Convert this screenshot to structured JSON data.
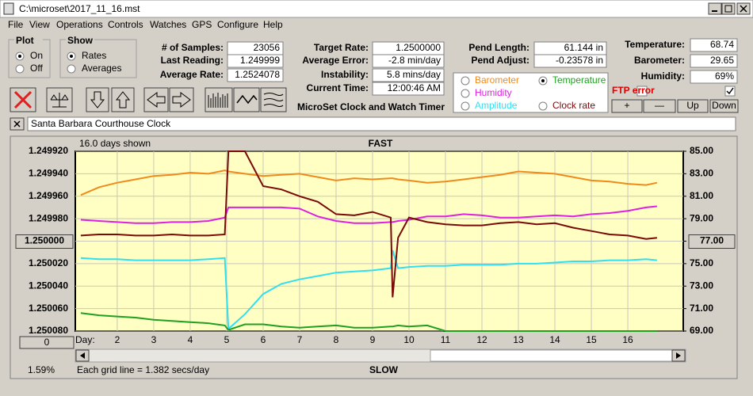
{
  "window": {
    "title": "C:\\microset\\2017_11_16.mst",
    "menu": [
      "File",
      "View",
      "Operations",
      "Controls",
      "Watches",
      "GPS",
      "Configure",
      "Help"
    ]
  },
  "controls": {
    "plot": {
      "label": "Plot",
      "options": [
        "On",
        "Off"
      ]
    },
    "show": {
      "label": "Show",
      "options": [
        "Rates",
        "Averages"
      ]
    },
    "fields": [
      {
        "label": "# of Samples:",
        "value": "23056"
      },
      {
        "label": "Last Reading:",
        "value": "1.249999"
      },
      {
        "label": "Average Rate:",
        "value": "1.2524078"
      },
      {
        "label": "Target Rate:",
        "value": "1.2500000"
      },
      {
        "label": "Average Error:",
        "value": "-2.8 min/day"
      },
      {
        "label": "Instability:",
        "value": "5.8 mins/day"
      },
      {
        "label": "Current Time:",
        "value": "12:00:46 AM"
      },
      {
        "label": "Pend Length:",
        "value": "61.144 in"
      },
      {
        "label": "Pend Adjust:",
        "value": "-0.23578 in"
      },
      {
        "label": "Temperature:",
        "value": "68.74"
      },
      {
        "label": "Barometer:",
        "value": "29.65"
      },
      {
        "label": "Humidity:",
        "value": "69%"
      }
    ],
    "app_name": "MicroSet Clock and Watch Timer",
    "ftp_error": "FTP error",
    "buttons": [
      "+",
      "—",
      "Up",
      "Down"
    ],
    "clock_name": "Santa Barbara Courthouse Clock",
    "days_shown": "16.0 days shown",
    "top_label": "FAST",
    "bottom_label": "SLOW",
    "x_prefix": "Day:",
    "grid_note": "Each grid line = 1.382 secs/day",
    "corner_value": "1.59%",
    "offset_button": "0"
  },
  "chart_data": {
    "type": "line",
    "x": [
      1,
      1.5,
      2,
      2.5,
      3,
      3.5,
      4,
      4.5,
      4.95,
      5.05,
      5.5,
      6,
      6.5,
      7,
      7.5,
      8,
      8.5,
      9,
      9.5,
      9.55,
      9.7,
      10,
      10.5,
      11,
      11.5,
      12,
      12.5,
      13,
      13.5,
      14,
      14.5,
      15,
      15.5,
      16,
      16.5,
      16.8
    ],
    "xlim": [
      0.85,
      17.52
    ],
    "xticks": [
      2,
      3,
      4,
      5,
      6,
      7,
      8,
      9,
      10,
      11,
      12,
      13,
      14,
      15,
      16
    ],
    "ylim": [
      1.25008,
      1.24992
    ],
    "yticks": [
      {
        "value": 1.24992,
        "label": "1.249920"
      },
      {
        "value": 1.24994,
        "label": "1.249940"
      },
      {
        "value": 1.24996,
        "label": "1.249960"
      },
      {
        "value": 1.24998,
        "label": "1.249980"
      },
      {
        "value": 1.25,
        "label": "1.250000"
      },
      {
        "value": 1.25002,
        "label": "1.250020"
      },
      {
        "value": 1.25004,
        "label": "1.250040"
      },
      {
        "value": 1.25006,
        "label": "1.250060"
      },
      {
        "value": 1.25008,
        "label": "1.250080"
      }
    ],
    "y2lim": [
      69,
      85
    ],
    "y2ticks": [
      {
        "value": 85,
        "label": "85.00"
      },
      {
        "value": 83,
        "label": "83.00"
      },
      {
        "value": 81,
        "label": "81.00"
      },
      {
        "value": 79,
        "label": "79.00"
      },
      {
        "value": 77,
        "label": "77.00"
      },
      {
        "value": 75,
        "label": "75.00"
      },
      {
        "value": 73,
        "label": "73.00"
      },
      {
        "value": 71,
        "label": "71.00"
      },
      {
        "value": 69,
        "label": "69.00"
      }
    ],
    "grid": true,
    "series": [
      {
        "name": "Barometer",
        "color": "#f08a1c",
        "axis": "y2",
        "values": [
          81.1,
          81.8,
          82.2,
          82.5,
          82.8,
          82.9,
          83.1,
          83.0,
          83.3,
          83.2,
          83.0,
          82.8,
          82.9,
          83.0,
          82.7,
          82.4,
          82.6,
          82.5,
          82.6,
          82.6,
          82.5,
          82.4,
          82.2,
          82.3,
          82.5,
          82.7,
          82.9,
          83.2,
          83.1,
          83.0,
          82.7,
          82.4,
          82.3,
          82.1,
          82.0,
          82.2
        ]
      },
      {
        "name": "Humidity",
        "color": "#e020e0",
        "axis": "y2",
        "values": [
          78.9,
          78.8,
          78.7,
          78.6,
          78.6,
          78.7,
          78.7,
          78.8,
          79.1,
          80.0,
          80.0,
          80.0,
          80.0,
          79.9,
          79.2,
          78.8,
          78.6,
          78.6,
          78.7,
          78.7,
          78.8,
          78.9,
          79.2,
          79.2,
          79.4,
          79.3,
          79.1,
          79.1,
          79.2,
          79.3,
          79.2,
          79.4,
          79.5,
          79.7,
          80.0,
          80.1
        ]
      },
      {
        "name": "Amplitude",
        "color": "#30e0f0",
        "axis": "y2",
        "values": [
          75.5,
          75.4,
          75.4,
          75.3,
          75.3,
          75.3,
          75.3,
          75.4,
          75.5,
          69.2,
          70.5,
          72.3,
          73.2,
          73.6,
          73.9,
          74.2,
          74.3,
          74.4,
          74.6,
          76.2,
          74.6,
          74.7,
          74.8,
          74.8,
          74.9,
          74.9,
          74.9,
          75.0,
          75.0,
          75.1,
          75.2,
          75.2,
          75.3,
          75.3,
          75.4,
          75.3
        ]
      },
      {
        "name": "Temperature",
        "color": "#20a020",
        "axis": "y2",
        "values": [
          70.6,
          70.4,
          70.3,
          70.2,
          70.0,
          69.9,
          69.8,
          69.7,
          69.5,
          69.1,
          69.6,
          69.6,
          69.4,
          69.3,
          69.4,
          69.5,
          69.3,
          69.3,
          69.4,
          69.4,
          69.5,
          69.4,
          69.5,
          69.0,
          69.0,
          69.0,
          69.0,
          69.0,
          69.0,
          69.0,
          69.0,
          69.0,
          69.0,
          69.0,
          69.0,
          69.0
        ]
      },
      {
        "name": "Clock rate",
        "color": "#7a0a0a",
        "values": [
          1.249995,
          1.249994,
          1.249994,
          1.249995,
          1.249995,
          1.249994,
          1.249995,
          1.249995,
          1.249994,
          1.24992,
          1.24992,
          1.249951,
          1.249954,
          1.24996,
          1.249965,
          1.249976,
          1.249977,
          1.249974,
          1.249979,
          1.25005,
          1.249997,
          1.249979,
          1.249983,
          1.249985,
          1.249986,
          1.249986,
          1.249984,
          1.249983,
          1.249985,
          1.249984,
          1.249988,
          1.249991,
          1.249994,
          1.249995,
          1.249998,
          1.249997
        ]
      }
    ]
  }
}
